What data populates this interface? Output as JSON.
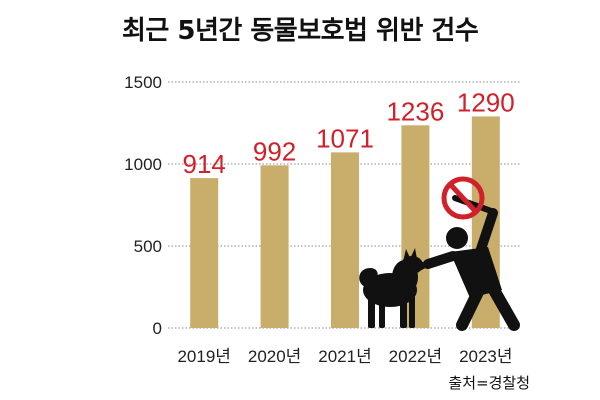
{
  "chart_data": {
    "type": "bar",
    "title": "최근 5년간 동물보호법 위반 건수",
    "categories": [
      "2019년",
      "2020년",
      "2021년",
      "2022년",
      "2023년"
    ],
    "values": [
      914,
      992,
      1071,
      1236,
      1290
    ],
    "data_labels": [
      "914",
      "992",
      "1071",
      "1236",
      "1290"
    ],
    "yticks": [
      "0",
      "500",
      "1000",
      "1500"
    ],
    "ylim": [
      0,
      1500
    ],
    "grid": "horizontal dotted",
    "source": "출처=경찰청"
  },
  "colors": {
    "bar": "#c9ad6b",
    "data_label": "#d0202a",
    "grid": "#888888",
    "silhouette": "#111111",
    "no_sign": "#d0202a"
  },
  "illustration": {
    "icons": [
      "dog-silhouette-icon",
      "person-with-stick-silhouette-icon",
      "prohibition-sign-icon"
    ]
  }
}
